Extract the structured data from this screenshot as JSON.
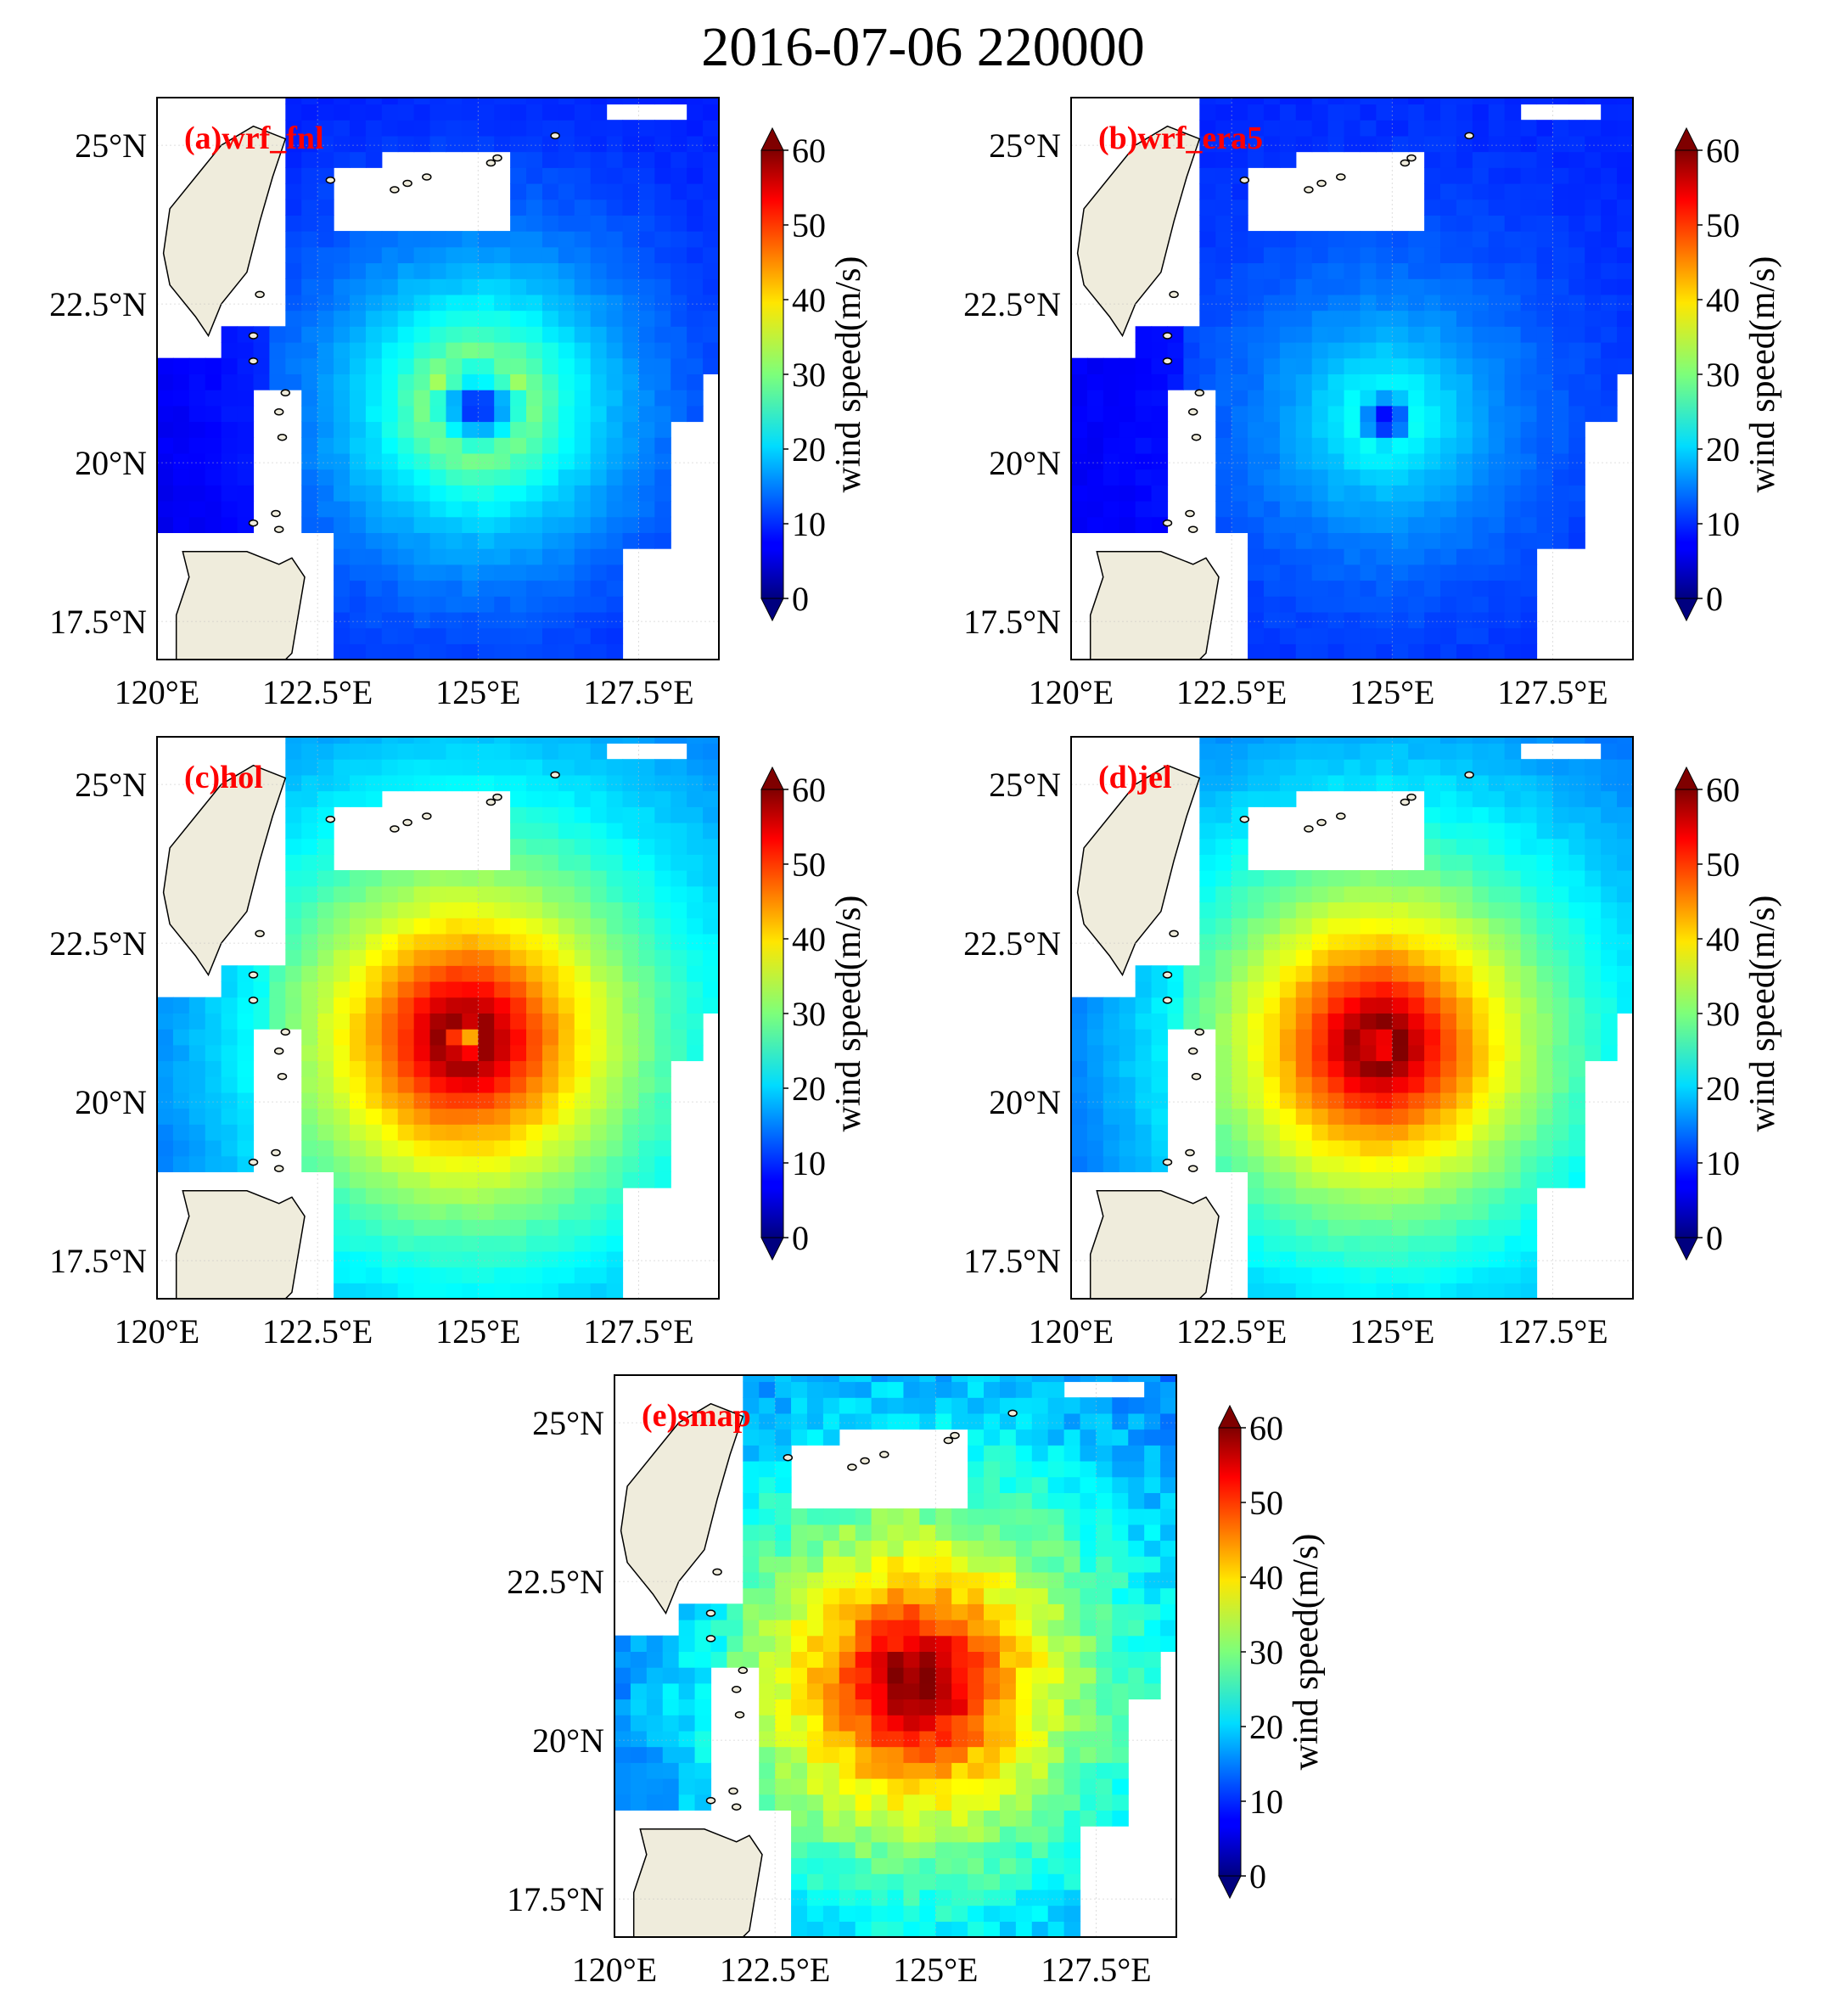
{
  "title": "2016-07-06 220000",
  "chart_data": {
    "type": "heatmap",
    "title": "2016-07-06 220000",
    "colormap": "jet",
    "colorbar": {
      "label": "wind speed(m/s)",
      "range": [
        0,
        60
      ],
      "ticks": [
        "0",
        "10",
        "20",
        "30",
        "40",
        "50",
        "60"
      ],
      "extend": "both"
    },
    "x_range": [
      120,
      128.75
    ],
    "y_range": [
      16.9,
      25.75
    ],
    "x_ticks": [
      120,
      122.5,
      125,
      127.5
    ],
    "x_tick_labels": [
      "120°E",
      "122.5°E",
      "125°E",
      "127.5°E"
    ],
    "y_ticks": [
      17.5,
      20,
      22.5,
      25
    ],
    "y_tick_labels": [
      "17.5°N",
      "20°N",
      "22.5°N",
      "25°N"
    ],
    "land_color": "#efecdc",
    "panels": [
      {
        "label": "(a)wrf_fnl",
        "center": [
          125.0,
          20.9
        ],
        "peak_wind": 30,
        "eye_wind": 6,
        "radius_of_max_wind_deg": 0.8,
        "background_wind": 8
      },
      {
        "label": "(b)wrf_era5",
        "center": [
          124.9,
          20.7
        ],
        "peak_wind": 23,
        "eye_wind": 5,
        "radius_of_max_wind_deg": 0.5,
        "background_wind": 9
      },
      {
        "label": "(c)hol",
        "center": [
          124.8,
          21.0
        ],
        "peak_wind": 60,
        "eye_wind": 38,
        "radius_of_max_wind_deg": 0.35,
        "background_wind": 10
      },
      {
        "label": "(d)jel",
        "center": [
          124.8,
          20.9
        ],
        "peak_wind": 60,
        "eye_wind": 48,
        "radius_of_max_wind_deg": 0.35,
        "background_wind": 9
      },
      {
        "label": "(e)smap",
        "center": [
          124.7,
          20.9
        ],
        "peak_wind": 60,
        "eye_wind": 55,
        "radius_of_max_wind_deg": 0.3,
        "background_wind": 10
      }
    ]
  }
}
